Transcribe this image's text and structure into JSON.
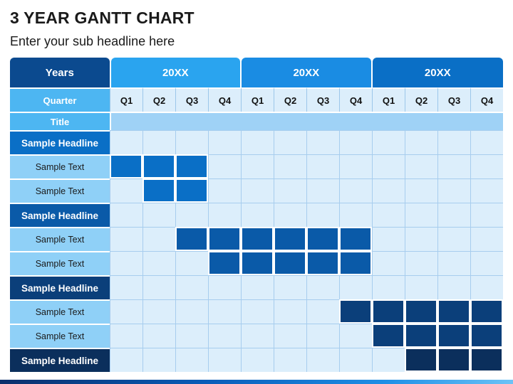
{
  "slide": {
    "title": "3 YEAR GANTT CHART",
    "subtitle": "Enter your sub headline here"
  },
  "header": {
    "years_label": "Years",
    "years": [
      "20XX",
      "20XX",
      "20XX"
    ],
    "quarter_label": "Quarter",
    "quarters": [
      "Q1",
      "Q2",
      "Q3",
      "Q4",
      "Q1",
      "Q2",
      "Q3",
      "Q4",
      "Q1",
      "Q2",
      "Q3",
      "Q4"
    ],
    "title_label": "Title"
  },
  "colors": {
    "grid_empty": "#dceefb",
    "headline_fills": [
      "#0a6fc6",
      "#0a5aa8",
      "#0b3f7a",
      "#0b2f5c"
    ],
    "text_label_fill": "#8fd0f7"
  },
  "rows": [
    {
      "label": "Sample Headline",
      "kind": "headline",
      "label_color": "#0a6fc6",
      "bar_color": "#0a6fc6",
      "active_quarters": []
    },
    {
      "label": "Sample Text",
      "kind": "text",
      "label_color": "#8fd0f7",
      "bar_color": "#0a6fc6",
      "active_quarters": [
        0,
        1,
        2
      ]
    },
    {
      "label": "Sample Text",
      "kind": "text",
      "label_color": "#8fd0f7",
      "bar_color": "#0a6fc6",
      "active_quarters": [
        1,
        2
      ]
    },
    {
      "label": "Sample Headline",
      "kind": "headline",
      "label_color": "#0a5aa8",
      "bar_color": "#0a5aa8",
      "active_quarters": []
    },
    {
      "label": "Sample Text",
      "kind": "text",
      "label_color": "#8fd0f7",
      "bar_color": "#0a5aa8",
      "active_quarters": [
        2,
        3,
        4,
        5,
        6,
        7
      ]
    },
    {
      "label": "Sample Text",
      "kind": "text",
      "label_color": "#8fd0f7",
      "bar_color": "#0a5aa8",
      "active_quarters": [
        3,
        4,
        5,
        6,
        7
      ]
    },
    {
      "label": "Sample Headline",
      "kind": "headline",
      "label_color": "#0b3f7a",
      "bar_color": "#0b3f7a",
      "active_quarters": []
    },
    {
      "label": "Sample Text",
      "kind": "text",
      "label_color": "#8fd0f7",
      "bar_color": "#0b3f7a",
      "active_quarters": [
        7,
        8,
        9,
        10,
        11
      ]
    },
    {
      "label": "Sample Text",
      "kind": "text",
      "label_color": "#8fd0f7",
      "bar_color": "#0b3f7a",
      "active_quarters": [
        8,
        9,
        10,
        11
      ]
    },
    {
      "label": "Sample Headline",
      "kind": "headline",
      "label_color": "#0b2f5c",
      "bar_color": "#0b2f5c",
      "active_quarters": [
        9,
        10,
        11
      ]
    }
  ]
}
